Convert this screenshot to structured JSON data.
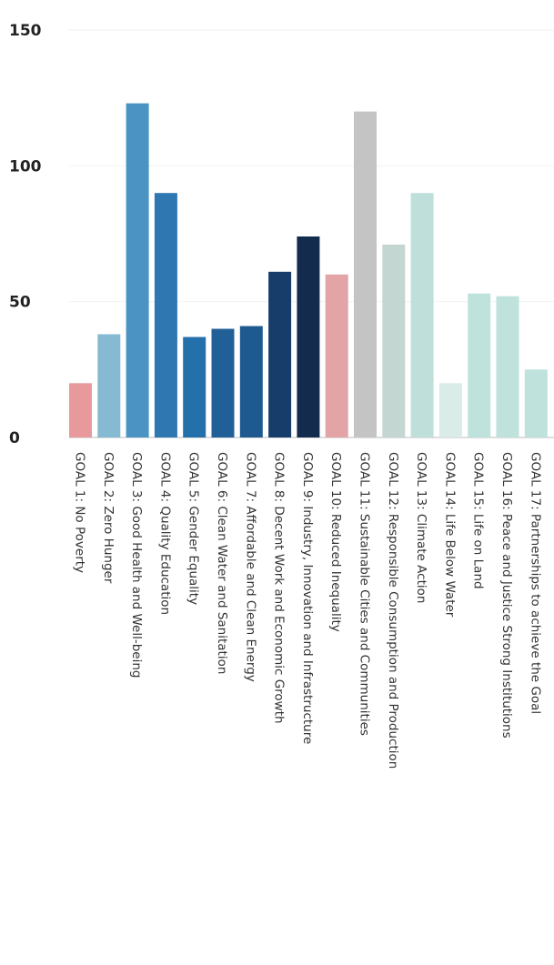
{
  "chart_data": {
    "type": "bar",
    "title": "",
    "xlabel": "",
    "ylabel": "",
    "ylim": [
      0,
      150
    ],
    "yticks": [
      0,
      50,
      100,
      150
    ],
    "grid": true,
    "categories": [
      "GOAL 1: No Poverty",
      "GOAL 2: Zero Hunger",
      "GOAL 3: Good Health and Well-being",
      "GOAL 4: Quality Education",
      "GOAL 5: Gender Equality",
      "GOAL 6: Clean Water and Sanitation",
      "GOAL 7: Affordable and Clean Energy",
      "GOAL 8: Decent Work and Economic Growth",
      "GOAL 9: Industry, Innovation and Infrastructure",
      "GOAL 10: Reduced Inequality",
      "GOAL 11: Sustainable Cities and Communities",
      "GOAL 12: Responsible Consumption and Production",
      "GOAL 13: Climate Action",
      "GOAL 14: Life Below Water",
      "GOAL 15: Life on Land",
      "GOAL 16: Peace and Justice Strong Institutions",
      "GOAL 17: Partnerships to achieve the Goal"
    ],
    "values": [
      20,
      38,
      123,
      90,
      37,
      40,
      41,
      61,
      74,
      60,
      120,
      71,
      90,
      20,
      53,
      52,
      25
    ],
    "colors": [
      "#e8999c",
      "#86b9d2",
      "#4a93c2",
      "#2e77b0",
      "#2470aa",
      "#215f97",
      "#1e5a8f",
      "#173d6b",
      "#132c4e",
      "#e3a4a7",
      "#c4c4c4",
      "#c4d6d2",
      "#bfe0da",
      "#d9ece8",
      "#bfe2dc",
      "#bfe2dc",
      "#bfe2dc"
    ]
  }
}
